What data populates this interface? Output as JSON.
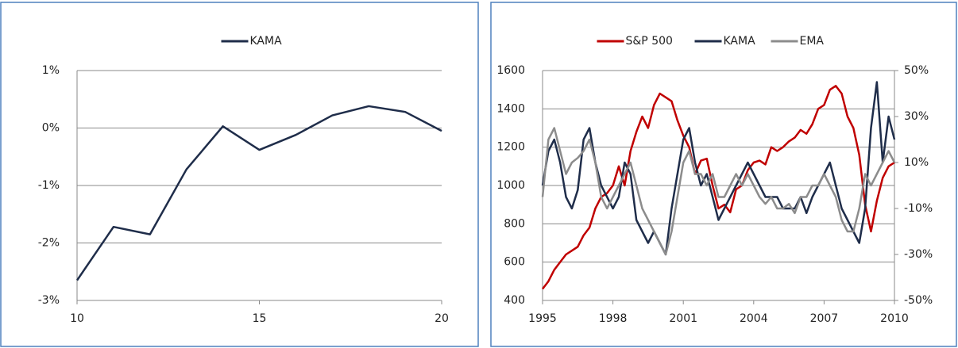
{
  "chart_data": [
    {
      "type": "line",
      "x": [
        10,
        11,
        12,
        13,
        14,
        15,
        16,
        17,
        18,
        19,
        20
      ],
      "series": [
        {
          "name": "KAMA",
          "color": "#1f2d4a",
          "values": [
            -2.65,
            -1.72,
            -1.85,
            -0.72,
            0.03,
            -0.38,
            -0.12,
            0.22,
            0.38,
            0.28,
            -0.05
          ]
        }
      ],
      "xlim": [
        10,
        20
      ],
      "xticks": [
        10,
        15,
        20
      ],
      "ylim": [
        -3,
        1
      ],
      "yticks": [
        {
          "value": -3,
          "label": "-3%"
        },
        {
          "value": -2,
          "label": "-2%"
        },
        {
          "value": -1,
          "label": "-1%"
        },
        {
          "value": 0,
          "label": "0%"
        },
        {
          "value": 1,
          "label": "1%"
        }
      ],
      "grid": true,
      "legend": "top"
    },
    {
      "type": "line",
      "x": [
        1995,
        1995.25,
        1995.5,
        1995.75,
        1996,
        1996.25,
        1996.5,
        1996.75,
        1997,
        1997.25,
        1997.5,
        1997.75,
        1998,
        1998.25,
        1998.5,
        1998.75,
        1999,
        1999.25,
        1999.5,
        1999.75,
        2000,
        2000.25,
        2000.5,
        2000.75,
        2001,
        2001.25,
        2001.5,
        2001.75,
        2002,
        2002.25,
        2002.5,
        2002.75,
        2003,
        2003.25,
        2003.5,
        2003.75,
        2004,
        2004.25,
        2004.5,
        2004.75,
        2005,
        2005.25,
        2005.5,
        2005.75,
        2006,
        2006.25,
        2006.5,
        2006.75,
        2007,
        2007.25,
        2007.5,
        2007.75,
        2008,
        2008.25,
        2008.5,
        2008.75,
        2009,
        2009.25,
        2009.5,
        2009.75,
        2010
      ],
      "series": [
        {
          "name": "S&P 500",
          "color": "#c00000",
          "axis": "y",
          "values": [
            460,
            500,
            560,
            600,
            640,
            660,
            680,
            740,
            780,
            880,
            940,
            960,
            1000,
            1100,
            1000,
            1180,
            1280,
            1360,
            1300,
            1420,
            1480,
            1460,
            1440,
            1340,
            1260,
            1200,
            1060,
            1130,
            1140,
            1000,
            880,
            900,
            860,
            980,
            1000,
            1080,
            1120,
            1130,
            1110,
            1200,
            1180,
            1200,
            1230,
            1250,
            1290,
            1270,
            1320,
            1400,
            1420,
            1500,
            1520,
            1480,
            1360,
            1300,
            1160,
            900,
            760,
            920,
            1040,
            1100,
            1120
          ]
        },
        {
          "name": "KAMA",
          "color": "#1f2d4a",
          "axis": "y2",
          "values": [
            0,
            15,
            20,
            10,
            -5,
            -10,
            -2,
            20,
            25,
            10,
            0,
            -5,
            -10,
            -5,
            10,
            5,
            -15,
            -20,
            -25,
            -20,
            -25,
            -30,
            -10,
            5,
            20,
            25,
            10,
            0,
            5,
            -5,
            -15,
            -10,
            -5,
            0,
            5,
            10,
            5,
            0,
            -5,
            -5,
            -5,
            -10,
            -10,
            -10,
            -5,
            -12,
            -5,
            0,
            5,
            10,
            0,
            -10,
            -15,
            -20,
            -25,
            -10,
            25,
            45,
            10,
            30,
            20
          ]
        },
        {
          "name": "EMA",
          "color": "#8c8c8c",
          "axis": "y2",
          "values": [
            -5,
            20,
            25,
            15,
            5,
            10,
            12,
            15,
            20,
            10,
            -5,
            -10,
            -5,
            0,
            5,
            10,
            0,
            -10,
            -15,
            -20,
            -25,
            -30,
            -20,
            -5,
            10,
            15,
            5,
            5,
            0,
            5,
            -5,
            -5,
            0,
            5,
            0,
            5,
            0,
            -5,
            -8,
            -5,
            -10,
            -10,
            -8,
            -12,
            -5,
            -5,
            0,
            0,
            5,
            0,
            -5,
            -15,
            -20,
            -20,
            -10,
            5,
            0,
            5,
            10,
            15,
            10
          ]
        }
      ],
      "xlim": [
        1995,
        2010
      ],
      "xticks": [
        1995,
        1998,
        2001,
        2004,
        2007,
        2010
      ],
      "ylim": [
        400,
        1600
      ],
      "yticks": [
        400,
        600,
        800,
        1000,
        1200,
        1400,
        1600
      ],
      "y2lim": [
        -50,
        50
      ],
      "y2ticks": [
        {
          "value": -50,
          "label": "-50%"
        },
        {
          "value": -30,
          "label": "-30%"
        },
        {
          "value": -10,
          "label": "-10%"
        },
        {
          "value": 10,
          "label": "10%"
        },
        {
          "value": 30,
          "label": "30%"
        },
        {
          "value": 50,
          "label": "50%"
        }
      ],
      "grid": true,
      "legend": "top"
    }
  ]
}
